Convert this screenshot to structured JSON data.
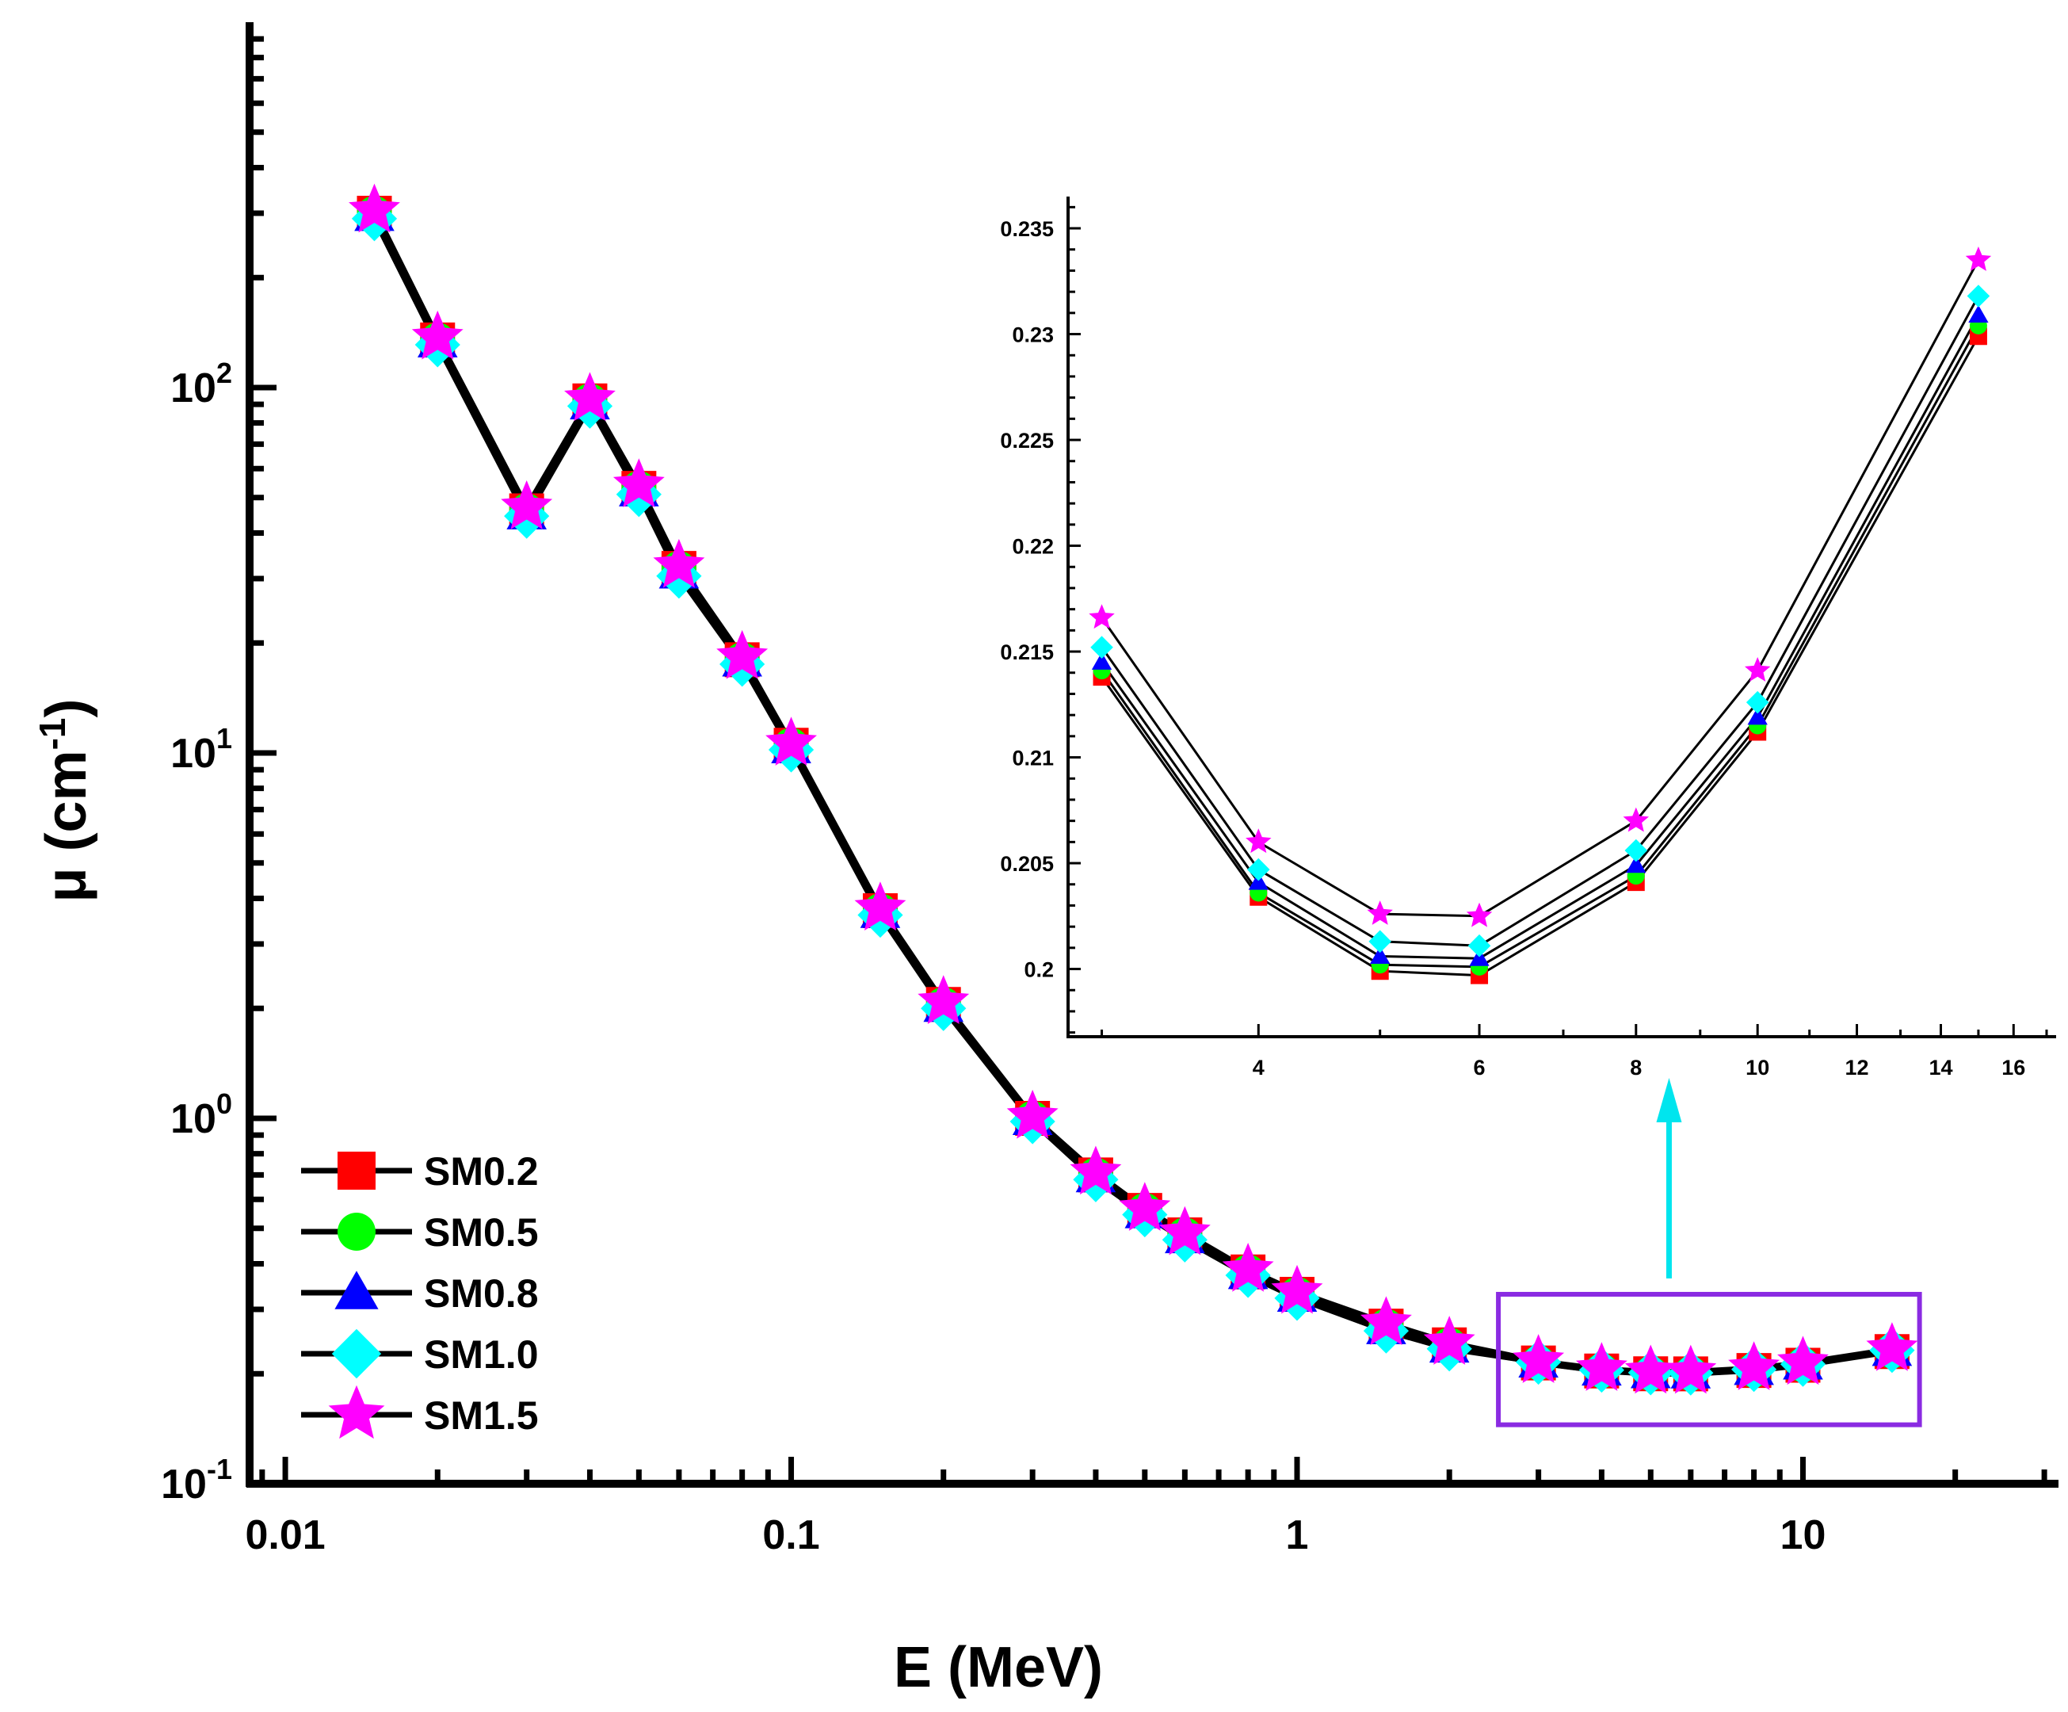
{
  "chart_data": [
    {
      "type": "line",
      "panel": "main",
      "xscale": "log",
      "yscale": "log",
      "xlabel": "E (MeV)",
      "ylabel": "μ (cm",
      "ylabel_sup": "-1",
      "ylabel_close": ")",
      "xlim": [
        0.0085,
        32
      ],
      "ylim": [
        0.1,
        1000
      ],
      "xticks": [
        {
          "value": 0.01,
          "label": "0.01"
        },
        {
          "value": 0.1,
          "label": "0.1"
        },
        {
          "value": 1,
          "label": "1"
        },
        {
          "value": 10,
          "label": "10"
        }
      ],
      "yticks": [
        {
          "value": 0.1,
          "base": "10",
          "exp": "-1"
        },
        {
          "value": 1,
          "base": "10",
          "exp": "0"
        },
        {
          "value": 10,
          "base": "10",
          "exp": "1"
        },
        {
          "value": 100,
          "base": "10",
          "exp": "2"
        }
      ],
      "x": [
        0.015,
        0.02,
        0.03,
        0.04,
        0.05,
        0.06,
        0.08,
        0.1,
        0.15,
        0.2,
        0.3,
        0.4,
        0.5,
        0.6,
        0.8,
        1,
        1.5,
        2,
        3,
        4,
        5,
        6,
        8,
        10,
        15
      ],
      "series": [
        {
          "name": "SM0.2",
          "color": "#ff0000",
          "marker": "square",
          "values": [
            300,
            135,
            46,
            92,
            53,
            32,
            18,
            10.5,
            3.7,
            2.05,
            1.0,
            0.7,
            0.56,
            0.48,
            0.38,
            0.33,
            0.27,
            0.24,
            0.214,
            0.2035,
            0.2,
            0.1998,
            0.2042,
            0.211,
            0.23
          ]
        },
        {
          "name": "SM0.5",
          "color": "#00ff00",
          "marker": "circle",
          "values": [
            300,
            135,
            46,
            92,
            53,
            32,
            18,
            10.5,
            3.7,
            2.05,
            1.0,
            0.7,
            0.56,
            0.48,
            0.38,
            0.33,
            0.27,
            0.24,
            0.2143,
            0.2037,
            0.2003,
            0.2001,
            0.2045,
            0.2115,
            0.2305
          ]
        },
        {
          "name": "SM0.8",
          "color": "#0000ff",
          "marker": "triangle",
          "values": [
            295,
            133,
            45,
            90,
            52,
            31,
            17.8,
            10.3,
            3.65,
            2.02,
            0.99,
            0.69,
            0.55,
            0.47,
            0.375,
            0.325,
            0.265,
            0.236,
            0.2147,
            0.2041,
            0.2007,
            0.2005,
            0.2049,
            0.212,
            0.231
          ]
        },
        {
          "name": "SM1.0",
          "color": "#00ffff",
          "marker": "diamond",
          "values": [
            290,
            131,
            44.5,
            89,
            51,
            30.5,
            17.5,
            10.2,
            3.6,
            2.0,
            0.98,
            0.68,
            0.545,
            0.465,
            0.372,
            0.322,
            0.262,
            0.234,
            0.2153,
            0.2047,
            0.2013,
            0.2011,
            0.2056,
            0.2125,
            0.2318
          ]
        },
        {
          "name": "SM1.5",
          "color": "#ff00ff",
          "marker": "star",
          "values": [
            305,
            137,
            47,
            93,
            54,
            32.5,
            18.3,
            10.6,
            3.75,
            2.08,
            1.01,
            0.71,
            0.565,
            0.485,
            0.385,
            0.335,
            0.275,
            0.243,
            0.2166,
            0.206,
            0.2026,
            0.2025,
            0.207,
            0.2142,
            0.2335
          ]
        }
      ],
      "legend": {
        "placement": "bottom-left",
        "entries": [
          "SM0.2",
          "SM0.5",
          "SM0.8",
          "SM1.0",
          "SM1.5"
        ]
      },
      "highlight": {
        "x_range": [
          2.5,
          17
        ],
        "y_range": [
          0.145,
          0.33
        ],
        "border_color": "#8a2be2"
      },
      "arrow": {
        "color": "#00e5ee",
        "from": "highlight-box",
        "to": "inset"
      }
    },
    {
      "type": "line",
      "panel": "inset",
      "xscale": "log",
      "yscale": "linear",
      "x": [
        3,
        4,
        5,
        6,
        8,
        10,
        15
      ],
      "xlim": [
        2.82,
        17.3
      ],
      "ylim": [
        0.1968,
        0.2365
      ],
      "xticks": [
        {
          "value": 4,
          "label": "4"
        },
        {
          "value": 6,
          "label": "6"
        },
        {
          "value": 8,
          "label": "8"
        },
        {
          "value": 10,
          "label": "10"
        },
        {
          "value": 12,
          "label": "12"
        },
        {
          "value": 14,
          "label": "14"
        },
        {
          "value": 16,
          "label": "16"
        }
      ],
      "yticks": [
        {
          "value": 0.2,
          "label": "0.2"
        },
        {
          "value": 0.205,
          "label": "0.205"
        },
        {
          "value": 0.21,
          "label": "0.21"
        },
        {
          "value": 0.215,
          "label": "0.215"
        },
        {
          "value": 0.22,
          "label": "0.22"
        },
        {
          "value": 0.225,
          "label": "0.225"
        },
        {
          "value": 0.23,
          "label": "0.23"
        },
        {
          "value": 0.235,
          "label": "0.235"
        }
      ],
      "series": [
        {
          "name": "SM0.2",
          "color": "#ff0000",
          "marker": "square",
          "values": [
            0.2138,
            0.2034,
            0.1999,
            0.1997,
            0.2041,
            0.2112,
            0.2299
          ]
        },
        {
          "name": "SM0.5",
          "color": "#00ff00",
          "marker": "circle",
          "values": [
            0.2141,
            0.2036,
            0.2002,
            0.2001,
            0.2044,
            0.2115,
            0.2304
          ]
        },
        {
          "name": "SM0.8",
          "color": "#0000ff",
          "marker": "triangle",
          "values": [
            0.2145,
            0.2041,
            0.2006,
            0.2005,
            0.2049,
            0.2119,
            0.2309
          ]
        },
        {
          "name": "SM1.0",
          "color": "#00ffff",
          "marker": "diamond",
          "values": [
            0.2152,
            0.2047,
            0.2013,
            0.2011,
            0.2056,
            0.2126,
            0.2318
          ]
        },
        {
          "name": "SM1.5",
          "color": "#ff00ff",
          "marker": "star",
          "values": [
            0.2166,
            0.206,
            0.2026,
            0.2025,
            0.207,
            0.2141,
            0.2335
          ]
        }
      ]
    }
  ]
}
